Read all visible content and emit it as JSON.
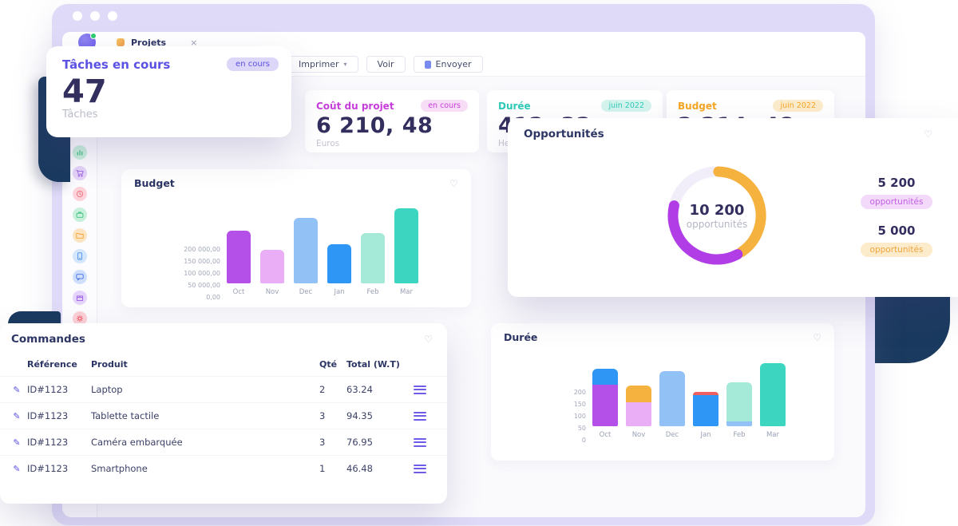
{
  "colors": {
    "navy_decor": "#1b3a5f",
    "frame_lavender": "#dedaf7",
    "accent_indigo": "#5b4ee0",
    "content_bg": "#fafafd"
  },
  "icons": {
    "heart": "♡",
    "chevron_down": "▾",
    "close": "×",
    "pencil": "✎"
  },
  "window": {
    "tab_label": "Projets"
  },
  "toolbar": {
    "imprimer_label": "Imprimer",
    "voir_label": "Voir",
    "envoyer_label": "Envoyer"
  },
  "tasks_card": {
    "title": "Tâches en cours",
    "badge": "en cours",
    "value": "47",
    "label": "Tâches"
  },
  "stat_cards": [
    {
      "title": "Coût du projet",
      "badge": "en cours",
      "value": "6 210, 48",
      "unit": "Euros",
      "accent": "#c73ddb",
      "badge_bg": "#f7ddf5"
    },
    {
      "title": "Durée",
      "badge": "juin 2022",
      "value": "412, 32",
      "unit": "Heures",
      "accent": "#2fc9b6",
      "badge_bg": "#d5f4ee"
    },
    {
      "title": "Budget",
      "badge": "juin 2022",
      "value": "2 214, 48",
      "unit": "",
      "accent": "#f5a623",
      "badge_bg": "#fdeccb"
    }
  ],
  "opportunities": {
    "title": "Opportunités",
    "center_value": "10 200",
    "center_label": "opportunités",
    "legend": [
      {
        "value": "5 200",
        "badge": "opportunités",
        "badge_bg": "#f3d9fa",
        "badge_text": "#c45fe8"
      },
      {
        "value": "5 000",
        "badge": "opportunités",
        "badge_bg": "#fdeccb",
        "badge_text": "#f0a43c"
      }
    ]
  },
  "orders": {
    "title": "Commandes",
    "headers": {
      "reference": "Référence",
      "product": "Produit",
      "qty": "Qté",
      "total": "Total (W.T)"
    },
    "rows": [
      {
        "reference": "ID#1123",
        "product": "Laptop",
        "qty": "2",
        "total": "63.24"
      },
      {
        "reference": "ID#1123",
        "product": "Tablette tactile",
        "qty": "3",
        "total": "94.35"
      },
      {
        "reference": "ID#1123",
        "product": "Caméra embarquée",
        "qty": "3",
        "total": "76.95"
      },
      {
        "reference": "ID#1123",
        "product": "Smartphone",
        "qty": "1",
        "total": "46.48"
      }
    ]
  },
  "sidebar": {
    "items": [
      {
        "name": "analytics",
        "bg": "#c9f0dc",
        "color": "#3fbf7f"
      },
      {
        "name": "cart",
        "bg": "#e5d4f9",
        "color": "#9a5de0"
      },
      {
        "name": "time",
        "bg": "#fcd3da",
        "color": "#ef6a7a"
      },
      {
        "name": "briefcase",
        "bg": "#c9f0dc",
        "color": "#3fbf7f"
      },
      {
        "name": "folder",
        "bg": "#fde5c4",
        "color": "#f0a32f"
      },
      {
        "name": "phone",
        "bg": "#d3e6fb",
        "color": "#4a90e2"
      },
      {
        "name": "chat",
        "bg": "#cfdffb",
        "color": "#4a6fe2"
      },
      {
        "name": "package",
        "bg": "#e5d4f9",
        "color": "#9a5de0"
      },
      {
        "name": "settings",
        "bg": "#fcd0d6",
        "color": "#ef5a6a"
      }
    ]
  },
  "chart_data": [
    {
      "id": "budget",
      "type": "bar",
      "title": "Budget",
      "categories": [
        "Oct",
        "Nov",
        "Dec",
        "Jan",
        "Feb",
        "Mar"
      ],
      "values": [
        220000,
        140000,
        275000,
        165000,
        210000,
        315000
      ],
      "bar_colors": [
        "#b44fe8",
        "#e9aef5",
        "#92c1f5",
        "#2e96f5",
        "#a5ead9",
        "#3cd5c0"
      ],
      "ytick_labels": [
        "200 000,00",
        "150 000,00",
        "100 000,00",
        "50 000,00",
        "0,00"
      ],
      "ytick_values": [
        200000,
        150000,
        100000,
        50000,
        0
      ],
      "xlabel": "",
      "ylabel": "",
      "ylim": [
        0,
        320000
      ],
      "grid": false,
      "legend": "none"
    },
    {
      "id": "duree",
      "type": "bar",
      "subtype": "stacked",
      "title": "Durée",
      "categories": [
        "Oct",
        "Nov",
        "Dec",
        "Jan",
        "Feb",
        "Mar"
      ],
      "stacks": [
        [
          {
            "value": 175,
            "color": "#b44fe8"
          },
          {
            "value": 65,
            "color": "#2e96f5"
          }
        ],
        [
          {
            "value": 100,
            "color": "#e9aef5"
          },
          {
            "value": 70,
            "color": "#f6b23e"
          }
        ],
        [
          {
            "value": 230,
            "color": "#92c1f5"
          }
        ],
        [
          {
            "value": 130,
            "color": "#2e96f5"
          },
          {
            "value": 15,
            "color": "#f05f5f"
          }
        ],
        [
          {
            "value": 20,
            "color": "#92c1f5"
          },
          {
            "value": 165,
            "color": "#a5ead9"
          }
        ],
        [
          {
            "value": 265,
            "color": "#3cd5c0"
          }
        ]
      ],
      "ytick_labels": [
        "200",
        "150",
        "100",
        "50",
        "0"
      ],
      "ytick_values": [
        200,
        150,
        100,
        50,
        0
      ],
      "xlabel": "",
      "ylabel": "",
      "ylim": [
        0,
        270
      ],
      "grid": false,
      "legend": "none"
    },
    {
      "id": "opportunites",
      "type": "pie",
      "subtype": "donut",
      "title": "Opportunités",
      "center_value": "10 200",
      "center_label": "opportunités",
      "slices": [
        {
          "label": "opportunités",
          "value": 5200,
          "color": "#b13de6"
        },
        {
          "label": "opportunités",
          "value": 5000,
          "color": "#f6b23e"
        }
      ],
      "ring_bg": "#f1eef9",
      "legend": "right"
    }
  ]
}
